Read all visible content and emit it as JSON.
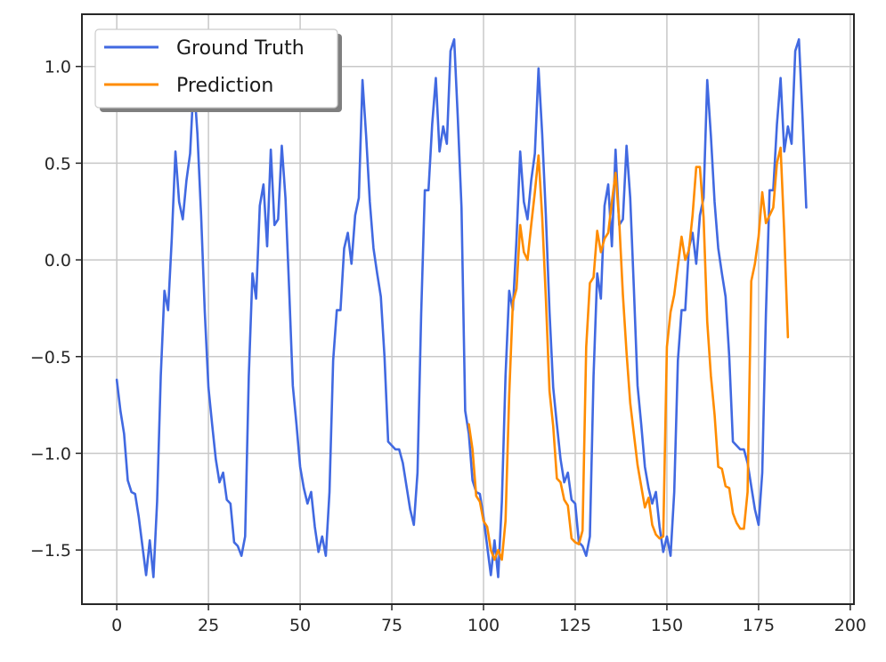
{
  "chart_data": {
    "type": "line",
    "title": "",
    "xlabel": "",
    "ylabel": "",
    "xlim": [
      -9.5,
      201
    ],
    "ylim": [
      -1.78,
      1.27
    ],
    "grid": true,
    "legend_position": "top-left",
    "x_ticks": [
      0,
      25,
      50,
      75,
      100,
      125,
      150,
      175,
      200
    ],
    "x_tick_labels": [
      "0",
      "25",
      "50",
      "75",
      "100",
      "125",
      "150",
      "175",
      "200"
    ],
    "y_ticks": [
      -1.5,
      -1.0,
      -0.5,
      0.0,
      0.5,
      1.0
    ],
    "y_tick_labels": [
      "−1.5",
      "−1.0",
      "−0.5",
      "0.0",
      "0.5",
      "1.0"
    ],
    "series": [
      {
        "name": "Ground Truth",
        "color": "#4169e1",
        "x_start": 0,
        "values": [
          -0.62,
          -0.78,
          -0.9,
          -1.14,
          -1.2,
          -1.21,
          -1.33,
          -1.48,
          -1.63,
          -1.45,
          -1.64,
          -1.25,
          -0.6,
          -0.16,
          -0.26,
          0.11,
          0.56,
          0.3,
          0.21,
          0.41,
          0.55,
          0.93,
          0.65,
          0.23,
          -0.27,
          -0.66,
          -0.85,
          -1.03,
          -1.15,
          -1.1,
          -1.24,
          -1.26,
          -1.46,
          -1.48,
          -1.53,
          -1.43,
          -0.6,
          -0.07,
          -0.2,
          0.28,
          0.39,
          0.07,
          0.57,
          0.18,
          0.21,
          0.59,
          0.32,
          -0.15,
          -0.65,
          -0.85,
          -1.07,
          -1.18,
          -1.26,
          -1.2,
          -1.38,
          -1.51,
          -1.43,
          -1.53,
          -1.2,
          -0.52,
          -0.26,
          -0.26,
          0.06,
          0.14,
          -0.02,
          0.23,
          0.32,
          0.93,
          0.64,
          0.3,
          0.06,
          -0.07,
          -0.19,
          -0.5,
          -0.94,
          -0.96,
          -0.98,
          -0.98,
          -1.05,
          -1.17,
          -1.29,
          -1.37,
          -1.1,
          -0.28,
          0.36,
          0.36,
          0.7,
          0.94,
          0.56,
          0.69,
          0.6,
          1.08,
          1.14,
          0.73,
          0.27,
          -0.78,
          -0.9,
          -1.14,
          -1.2,
          -1.21,
          -1.33,
          -1.48,
          -1.63,
          -1.45,
          -1.64,
          -1.25,
          -0.6,
          -0.16,
          -0.26,
          0.11,
          0.56,
          0.3,
          0.21,
          0.41,
          0.55,
          0.99,
          0.65,
          0.23,
          -0.27,
          -0.66,
          -0.85,
          -1.03,
          -1.15,
          -1.1,
          -1.24,
          -1.26,
          -1.46,
          -1.48,
          -1.53,
          -1.43,
          -0.6,
          -0.07,
          -0.2,
          0.28,
          0.39,
          0.07,
          0.57,
          0.18,
          0.21,
          0.59,
          0.32,
          -0.15,
          -0.65,
          -0.85,
          -1.07,
          -1.18,
          -1.26,
          -1.2,
          -1.38,
          -1.51,
          -1.43,
          -1.53,
          -1.2,
          -0.52,
          -0.26,
          -0.26,
          0.06,
          0.14,
          -0.02,
          0.23,
          0.32,
          0.93,
          0.64,
          0.3,
          0.06,
          -0.07,
          -0.19,
          -0.5,
          -0.94,
          -0.96,
          -0.98,
          -0.98,
          -1.05,
          -1.17,
          -1.29,
          -1.37,
          -1.1,
          -0.28,
          0.36,
          0.36,
          0.7,
          0.94,
          0.56,
          0.69,
          0.6,
          1.08,
          1.14,
          0.73,
          0.27
        ]
      },
      {
        "name": "Prediction",
        "color": "#ff8c00",
        "x_start": 96,
        "values": [
          -0.85,
          -0.98,
          -1.22,
          -1.25,
          -1.35,
          -1.38,
          -1.5,
          -1.55,
          -1.5,
          -1.55,
          -1.35,
          -0.7,
          -0.22,
          -0.15,
          0.18,
          0.04,
          0.0,
          0.18,
          0.35,
          0.54,
          0.22,
          -0.2,
          -0.68,
          -0.86,
          -1.13,
          -1.15,
          -1.24,
          -1.27,
          -1.44,
          -1.46,
          -1.47,
          -1.4,
          -0.45,
          -0.12,
          -0.09,
          0.15,
          0.04,
          0.11,
          0.14,
          0.3,
          0.45,
          0.2,
          -0.18,
          -0.48,
          -0.74,
          -0.9,
          -1.06,
          -1.17,
          -1.28,
          -1.23,
          -1.37,
          -1.42,
          -1.44,
          -1.43,
          -0.45,
          -0.27,
          -0.18,
          -0.03,
          0.12,
          0.0,
          0.05,
          0.23,
          0.48,
          0.48,
          0.22,
          -0.32,
          -0.6,
          -0.8,
          -1.07,
          -1.08,
          -1.17,
          -1.18,
          -1.31,
          -1.36,
          -1.39,
          -1.39,
          -1.2,
          -0.11,
          -0.02,
          0.12,
          0.35,
          0.19,
          0.23,
          0.27,
          0.5,
          0.58,
          0.14,
          -0.4
        ]
      }
    ]
  }
}
